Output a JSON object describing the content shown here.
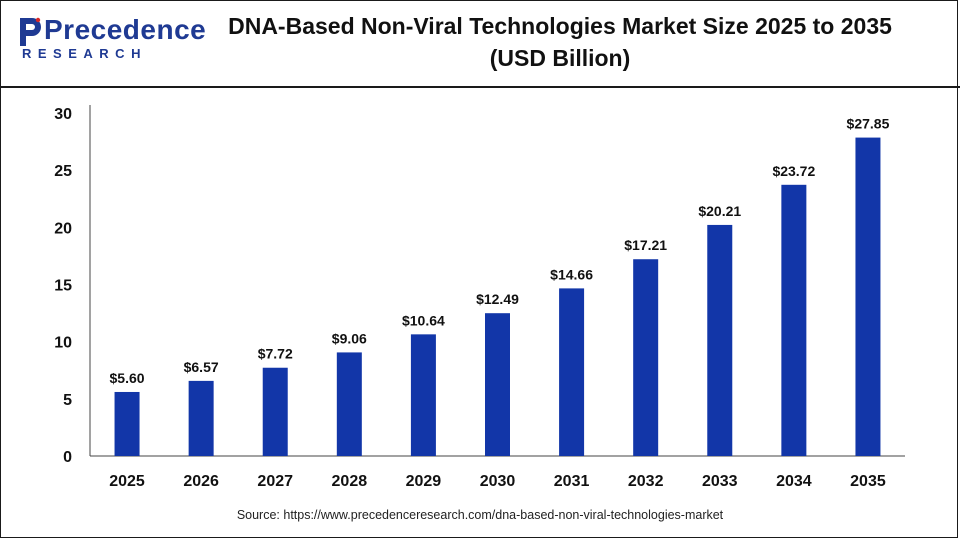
{
  "logo": {
    "name": "Precedence",
    "sub": "RESEARCH"
  },
  "header": {
    "title_line1": "DNA-Based Non-Viral Technologies Market Size 2025 to 2035",
    "title_line2": "(USD Billion)"
  },
  "source": "Source: https://www.precedenceresearch.com/dna-based-non-viral-technologies-market",
  "colors": {
    "bar": "#1236a8",
    "axis": "#444444",
    "text": "#111111",
    "brand": "#1f3a93"
  },
  "chart_data": {
    "type": "bar",
    "title": "DNA-Based Non-Viral Technologies Market Size 2025 to 2035 (USD Billion)",
    "categories": [
      "2025",
      "2026",
      "2027",
      "2028",
      "2029",
      "2030",
      "2031",
      "2032",
      "2033",
      "2034",
      "2035"
    ],
    "values": [
      5.6,
      6.57,
      7.72,
      9.06,
      10.64,
      12.49,
      14.66,
      17.21,
      20.21,
      23.72,
      27.85
    ],
    "data_labels": [
      "$5.60",
      "$6.57",
      "$7.72",
      "$9.06",
      "$10.64",
      "$12.49",
      "$14.66",
      "$17.21",
      "$20.21",
      "$23.72",
      "$27.85"
    ],
    "yticks": [
      0,
      5,
      10,
      15,
      20,
      25,
      30
    ],
    "ylim": [
      0,
      30
    ],
    "grid": false,
    "legend": "none"
  }
}
